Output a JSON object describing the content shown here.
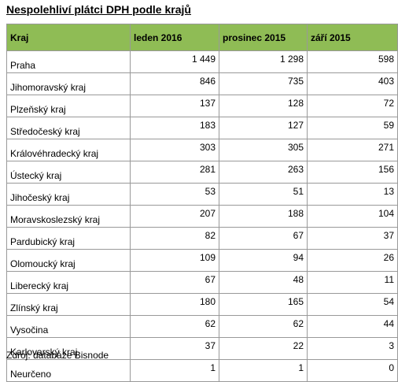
{
  "header": {
    "title": "Nespolehliví plátci DPH podle krajů"
  },
  "table": {
    "columns": [
      "Kraj",
      "leden 2016",
      "prosinec 2015",
      "září 2015"
    ],
    "rows": [
      [
        "Praha",
        "1 449",
        "1 298",
        "598"
      ],
      [
        "Jihomoravský kraj",
        "846",
        "735",
        "403"
      ],
      [
        "Plzeňský kraj",
        "137",
        "128",
        "72"
      ],
      [
        "Středočeský kraj",
        "183",
        "127",
        "59"
      ],
      [
        "Královéhradecký kraj",
        "303",
        "305",
        "271"
      ],
      [
        "Ústecký kraj",
        "281",
        "263",
        "156"
      ],
      [
        "Jihočeský kraj",
        "53",
        "51",
        "13"
      ],
      [
        "Moravskoslezský kraj",
        "207",
        "188",
        "104"
      ],
      [
        "Pardubický kraj",
        "82",
        "67",
        "37"
      ],
      [
        "Olomoucký kraj",
        "109",
        "94",
        "26"
      ],
      [
        "Liberecký kraj",
        "67",
        "48",
        "11"
      ],
      [
        "Zlínský kraj",
        "180",
        "165",
        "54"
      ],
      [
        "Vysočina",
        "62",
        "62",
        "44"
      ],
      [
        "Karlovarský kraj",
        "37",
        "22",
        "3"
      ],
      [
        "Neurčeno",
        "1",
        "1",
        "0"
      ]
    ]
  },
  "footer": {
    "source": "Zdroj: databáze Bisnode"
  }
}
